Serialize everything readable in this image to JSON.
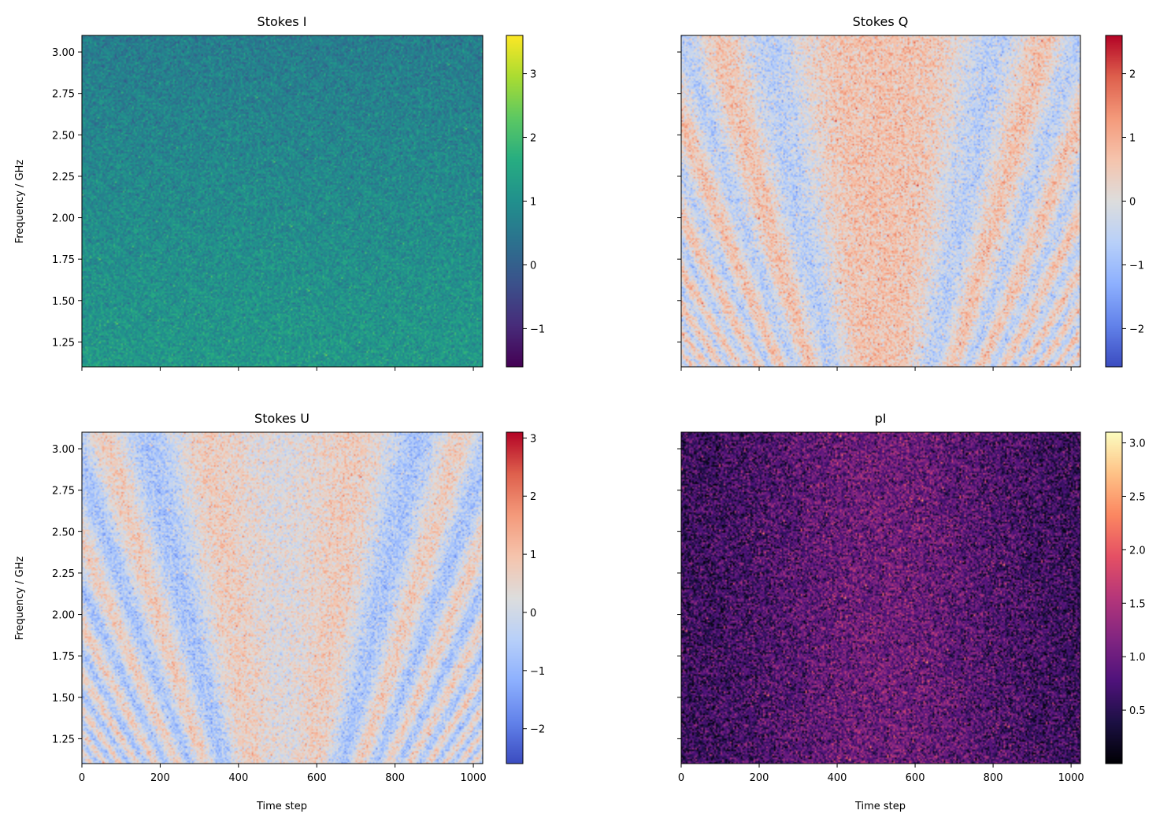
{
  "chart_data": [
    {
      "type": "heatmap",
      "title": "Stokes I",
      "xlabel": "",
      "ylabel": "Frequency / GHz",
      "xlim": [
        0,
        1024
      ],
      "ylim": [
        1.1,
        3.1
      ],
      "xticks": [
        0,
        200,
        400,
        600,
        800,
        1000
      ],
      "xtick_labels_shown": false,
      "yticks": [
        1.25,
        1.5,
        1.75,
        2.0,
        2.25,
        2.5,
        2.75,
        3.0
      ],
      "ytick_labels": [
        "1.25",
        "1.50",
        "1.75",
        "2.00",
        "2.25",
        "2.50",
        "2.75",
        "3.00"
      ],
      "ytick_labels_shown": true,
      "colormap": "viridis",
      "colorbar": {
        "range": [
          -1.6,
          3.6
        ],
        "ticks": [
          -1,
          0,
          1,
          2,
          3
        ],
        "tick_labels": [
          "−1",
          "0",
          "1",
          "2",
          "3"
        ]
      },
      "pattern": "noise ~0.6 mean at high frequency rising to ~1.2 at low frequency"
    },
    {
      "type": "heatmap",
      "title": "Stokes Q",
      "xlabel": "",
      "ylabel": "",
      "xlim": [
        0,
        1024
      ],
      "ylim": [
        1.1,
        3.1
      ],
      "xticks": [
        0,
        200,
        400,
        600,
        800,
        1000
      ],
      "xtick_labels_shown": false,
      "yticks": [
        1.25,
        1.5,
        1.75,
        2.0,
        2.25,
        2.5,
        2.75,
        3.0
      ],
      "ytick_labels_shown": false,
      "colormap": "coolwarm",
      "colorbar": {
        "range": [
          -2.6,
          2.6
        ],
        "ticks": [
          -2,
          -1,
          0,
          1,
          2
        ],
        "tick_labels": [
          "−2",
          "−1",
          "0",
          "1",
          "2"
        ]
      },
      "pattern": "chirped oscillation symmetric about t~512, cosine phase"
    },
    {
      "type": "heatmap",
      "title": "Stokes U",
      "xlabel": "Time step",
      "ylabel": "Frequency / GHz",
      "xlim": [
        0,
        1024
      ],
      "ylim": [
        1.1,
        3.1
      ],
      "xticks": [
        0,
        200,
        400,
        600,
        800,
        1000
      ],
      "xtick_labels": [
        "0",
        "200",
        "400",
        "600",
        "800",
        "1000"
      ],
      "xtick_labels_shown": true,
      "yticks": [
        1.25,
        1.5,
        1.75,
        2.0,
        2.25,
        2.5,
        2.75,
        3.0
      ],
      "ytick_labels": [
        "1.25",
        "1.50",
        "1.75",
        "2.00",
        "2.25",
        "2.50",
        "2.75",
        "3.00"
      ],
      "ytick_labels_shown": true,
      "colormap": "coolwarm",
      "colorbar": {
        "range": [
          -2.6,
          3.1
        ],
        "ticks": [
          -2,
          -1,
          0,
          1,
          2,
          3
        ],
        "tick_labels": [
          "−2",
          "−1",
          "0",
          "1",
          "2",
          "3"
        ]
      },
      "pattern": "chirped oscillation symmetric about t~512, sine phase"
    },
    {
      "type": "heatmap",
      "title": "pI",
      "xlabel": "Time step",
      "ylabel": "",
      "xlim": [
        0,
        1024
      ],
      "ylim": [
        1.1,
        3.1
      ],
      "xticks": [
        0,
        200,
        400,
        600,
        800,
        1000
      ],
      "xtick_labels": [
        "0",
        "200",
        "400",
        "600",
        "800",
        "1000"
      ],
      "xtick_labels_shown": true,
      "yticks": [
        1.25,
        1.5,
        1.75,
        2.0,
        2.25,
        2.5,
        2.75,
        3.0
      ],
      "ytick_labels_shown": false,
      "colormap": "magma",
      "colorbar": {
        "range": [
          0.0,
          3.1
        ],
        "ticks": [
          0.5,
          1.0,
          1.5,
          2.0,
          2.5,
          3.0
        ],
        "tick_labels": [
          "0.5",
          "1.0",
          "1.5",
          "2.0",
          "2.5",
          "3.0"
        ]
      },
      "pattern": "noise ~0.8 background, brighter (~1.2) in middle time range"
    }
  ]
}
